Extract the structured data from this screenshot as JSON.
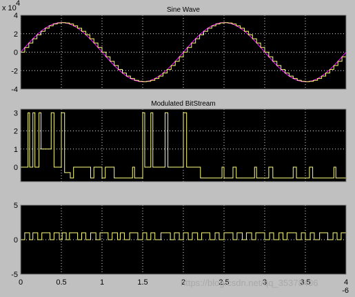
{
  "colors": {
    "background": "#c0c0c0",
    "plot_bg": "#000000",
    "grid": "#e8e8e8",
    "signal_yellow": "#ffff80",
    "signal_magenta": "#ff00ff"
  },
  "watermark": "https://blog.csdn.net/qq_35378406",
  "chart_data": [
    {
      "type": "line",
      "title": "Sine Wave",
      "xlim": [
        0,
        8
      ],
      "ylim": [
        -4,
        4
      ],
      "yticks": [
        "-4",
        "-2",
        "0",
        "2",
        "4"
      ],
      "xticks": [],
      "y_exponent_base": "x 10",
      "y_exponent_power": "4",
      "grid": true,
      "series": [
        {
          "color": "#ff00ff",
          "kind": "continuous",
          "amplitude": 3.2,
          "period": 4
        },
        {
          "color": "#ffff80",
          "kind": "sampled",
          "amplitude": 3.2,
          "period": 4,
          "sample_step": 0.1
        }
      ]
    },
    {
      "type": "line",
      "title": "Modulated BitStream",
      "xlim": [
        0,
        8
      ],
      "ylim": [
        -0.8,
        3.2
      ],
      "yticks": [
        "0",
        "1",
        "2",
        "3"
      ],
      "xticks": [],
      "grid": true,
      "series": [
        {
          "color": "#ffff80",
          "kind": "step",
          "x": [
            0,
            0.18,
            0.22,
            0.3,
            0.35,
            0.45,
            0.5,
            0.75,
            0.82,
            1.0,
            1.08,
            1.22,
            1.3,
            1.72,
            1.8,
            2.0,
            2.08,
            2.2,
            2.3,
            2.75,
            2.8,
            3.0,
            3.05,
            3.2,
            3.25,
            3.55,
            3.62,
            4.0,
            4.08,
            4.35,
            4.42,
            4.95,
            5.0,
            5.22,
            5.3,
            5.75,
            5.8,
            6.1,
            6.2,
            6.7,
            6.78,
            7.1,
            7.18,
            7.7,
            7.75,
            8.0
          ],
          "y": [
            0,
            3,
            0,
            3,
            0,
            3,
            1,
            3,
            0,
            3,
            -0.3,
            -0.6,
            0,
            -0.6,
            0,
            -0.6,
            0,
            0,
            -0.6,
            0,
            -0.6,
            3,
            0,
            3,
            0,
            3,
            0,
            3,
            0,
            0,
            -0.6,
            0,
            -0.6,
            0,
            -0.6,
            0,
            -0.6,
            0,
            -0.6,
            0,
            -0.6,
            0,
            -0.6,
            0,
            -0.6,
            0
          ]
        }
      ]
    },
    {
      "type": "line",
      "title": "",
      "xlim": [
        0,
        8
      ],
      "ylim": [
        -5,
        5
      ],
      "yticks": [
        "-5",
        "0",
        "5"
      ],
      "xticks": [
        "0",
        "0.5",
        "1",
        "1.5",
        "2",
        "2.5",
        "3",
        "3.5",
        "4"
      ],
      "x_exponent": "-6",
      "grid": true,
      "series": [
        {
          "color": "#ffff80",
          "kind": "pulse",
          "x": [
            0.0,
            0.1,
            0.22,
            0.3,
            0.42,
            0.52,
            0.62,
            0.72,
            0.82,
            0.95,
            1.02,
            1.12,
            1.2,
            1.32,
            1.4,
            1.5,
            1.6,
            1.72,
            1.85,
            1.95,
            2.05,
            2.15,
            2.25,
            2.38,
            2.45,
            2.55,
            2.68,
            2.78,
            2.88,
            3.0,
            3.1,
            3.2,
            3.3,
            3.45,
            3.55,
            3.68,
            3.78,
            3.9,
            4.0,
            4.12,
            4.22,
            4.35,
            4.45,
            4.55,
            4.65,
            4.78,
            4.88,
            5.0,
            5.12,
            5.22,
            5.32,
            5.45,
            5.55,
            5.68,
            5.78,
            5.9,
            6.0,
            6.12,
            6.22,
            6.35,
            6.45,
            6.55,
            6.68,
            6.78,
            6.9,
            7.0,
            7.12,
            7.22,
            7.35,
            7.45,
            7.55,
            7.68,
            7.78,
            7.88,
            8.0
          ],
          "y": [
            0,
            1,
            0,
            1,
            0,
            1,
            1,
            0,
            1,
            0,
            1,
            0,
            1,
            1,
            0,
            1,
            0,
            1,
            0,
            1,
            1,
            0,
            1,
            0,
            1,
            0,
            1,
            1,
            0,
            1,
            0,
            1,
            0,
            1,
            1,
            0,
            1,
            0,
            1,
            0,
            1,
            0,
            1,
            1,
            0,
            1,
            0,
            1,
            1,
            0,
            1,
            0,
            1,
            0,
            1,
            1,
            0,
            1,
            0,
            1,
            0,
            1,
            1,
            0,
            1,
            0,
            1,
            0,
            1,
            1,
            0,
            1,
            0,
            1,
            0
          ]
        }
      ]
    }
  ]
}
